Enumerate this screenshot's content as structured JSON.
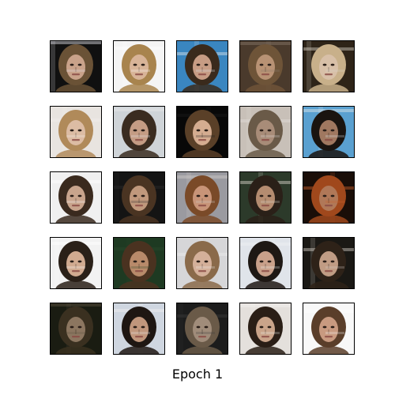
{
  "figure": {
    "caption": "Epoch 1",
    "grid_rows": 5,
    "grid_cols": 5,
    "tiles": [
      {
        "bg": "#101010",
        "hair": "#6a5236",
        "skin": "#c9a28a",
        "accent": "#e8e8f0"
      },
      {
        "bg": "#f4f4f4",
        "hair": "#a8844e",
        "skin": "#d8b498",
        "accent": "#ffffff"
      },
      {
        "bg": "#3a86c0",
        "hair": "#3a2a1c",
        "skin": "#c79c84",
        "accent": "#e0e6ea"
      },
      {
        "bg": "#4a3a2c",
        "hair": "#6e5438",
        "skin": "#b89274",
        "accent": "#8a7a6a"
      },
      {
        "bg": "#2e2418",
        "hair": "#c8b08a",
        "skin": "#d8c0a8",
        "accent": "#d8d2c6"
      },
      {
        "bg": "#e8e4e0",
        "hair": "#b08a5a",
        "skin": "#dcbca4",
        "accent": "#f2eeea"
      },
      {
        "bg": "#cfd4d8",
        "hair": "#3a2c20",
        "skin": "#c49c84",
        "accent": "#e6e8ea"
      },
      {
        "bg": "#080808",
        "hair": "#5a4028",
        "skin": "#d4ac90",
        "accent": "#1a1a1a"
      },
      {
        "bg": "#c8c0b8",
        "hair": "#6a5a48",
        "skin": "#a88c78",
        "accent": "#e0dcd8"
      },
      {
        "bg": "#5aa0d0",
        "hair": "#1a1410",
        "skin": "#a07860",
        "accent": "#e4e8ec"
      },
      {
        "bg": "#f0f0f0",
        "hair": "#3a2a1e",
        "skin": "#c8a48c",
        "accent": "#ffffff"
      },
      {
        "bg": "#141414",
        "hair": "#4a3422",
        "skin": "#c0987c",
        "accent": "#2a2a2a"
      },
      {
        "bg": "#9a9aa0",
        "hair": "#7a4a28",
        "skin": "#c89478",
        "accent": "#d0ccc8"
      },
      {
        "bg": "#2c3a2a",
        "hair": "#2a2018",
        "skin": "#b48c70",
        "accent": "#e0dcd0"
      },
      {
        "bg": "#1a0e08",
        "hair": "#a0481c",
        "skin": "#b07858",
        "accent": "#c8602a"
      },
      {
        "bg": "#f2f2f2",
        "hair": "#2a2018",
        "skin": "#d0aa90",
        "accent": "#ffffff"
      },
      {
        "bg": "#1e3a22",
        "hair": "#4a3220",
        "skin": "#b88a6a",
        "accent": "#2a4a2c"
      },
      {
        "bg": "#d6d6d8",
        "hair": "#8a6a4a",
        "skin": "#d4b09a",
        "accent": "#eeeeee"
      },
      {
        "bg": "#e0e4ea",
        "hair": "#1e1814",
        "skin": "#c8a08a",
        "accent": "#f0f2f4"
      },
      {
        "bg": "#1a1814",
        "hair": "#2e2218",
        "skin": "#c09c84",
        "accent": "#d8d0c8"
      },
      {
        "bg": "#1a1c12",
        "hair": "#3a3020",
        "skin": "#8c7660",
        "accent": "#5a5240"
      },
      {
        "bg": "#cfd6e0",
        "hair": "#1e1612",
        "skin": "#c0967c",
        "accent": "#f0f0f0"
      },
      {
        "bg": "#1c1c1c",
        "hair": "#6a5a48",
        "skin": "#a08c7a",
        "accent": "#3a3a3a"
      },
      {
        "bg": "#e4e0dc",
        "hair": "#2a1e16",
        "skin": "#caa48a",
        "accent": "#f4f2f0"
      },
      {
        "bg": "#f8f8f8",
        "hair": "#5a3e2a",
        "skin": "#c89a80",
        "accent": "#ffffff"
      }
    ]
  }
}
